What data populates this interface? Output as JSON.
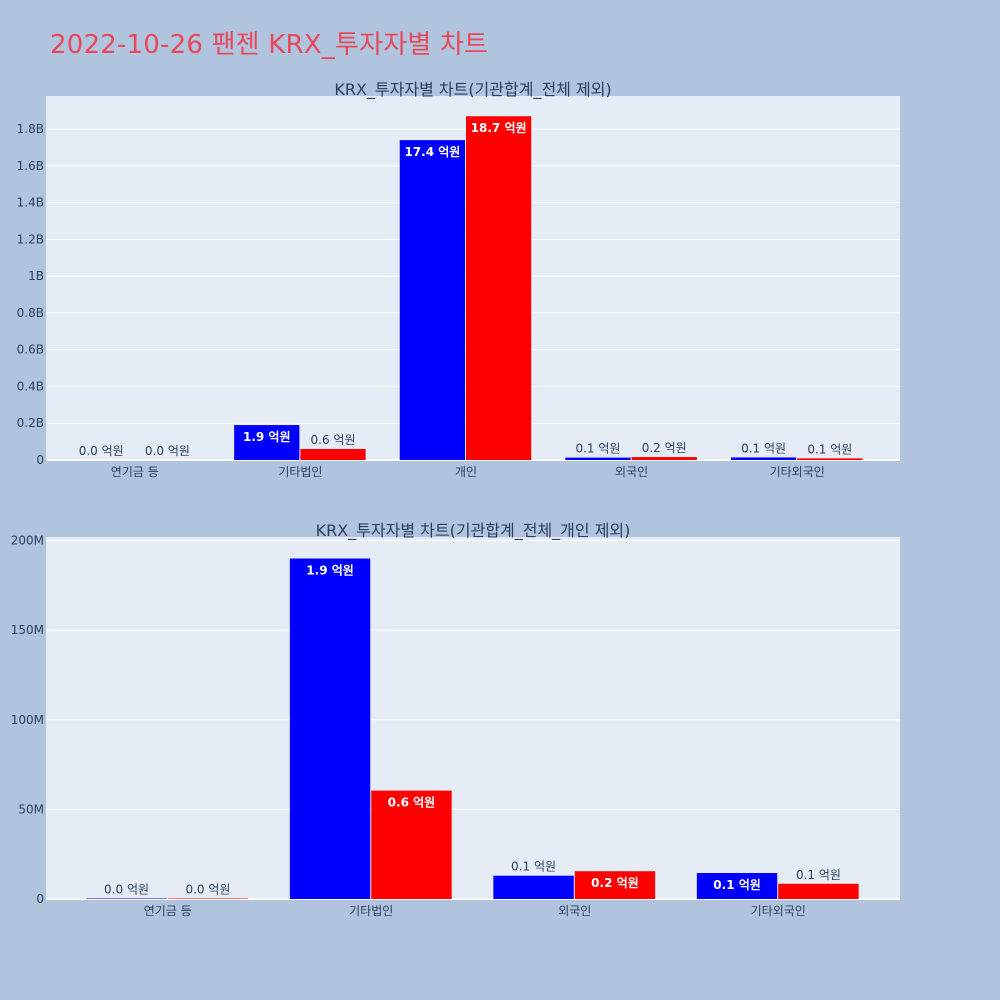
{
  "page": {
    "title": "2022-10-26 팬젠 KRX_투자자별 차트"
  },
  "colors": {
    "background": "#b0c4de",
    "plot_bg": "#e5ecf6",
    "grid": "#ffffff",
    "series_1": "#0000ff",
    "series_2": "#ff0000",
    "title": "#e8485a",
    "text": "#2a3f5f"
  },
  "chart_data": [
    {
      "type": "bar",
      "title": "KRX_투자자별 차트(기관합계_전체 제외)",
      "categories": [
        "연기금 등",
        "기타법인",
        "개인",
        "외국인",
        "기타외국인"
      ],
      "ylim": [
        0,
        1980000000
      ],
      "y_ticks": [
        {
          "value": 0,
          "label": "0"
        },
        {
          "value": 200000000,
          "label": "0.2B"
        },
        {
          "value": 400000000,
          "label": "0.4B"
        },
        {
          "value": 600000000,
          "label": "0.6B"
        },
        {
          "value": 800000000,
          "label": "0.8B"
        },
        {
          "value": 1000000000,
          "label": "1B"
        },
        {
          "value": 1200000000,
          "label": "1.2B"
        },
        {
          "value": 1400000000,
          "label": "1.4B"
        },
        {
          "value": 1600000000,
          "label": "1.6B"
        },
        {
          "value": 1800000000,
          "label": "1.8B"
        }
      ],
      "grid": true,
      "series": [
        {
          "values": [
            0,
            190000000,
            1740000000,
            13000000,
            14000000
          ],
          "labels": [
            "0.0 억원",
            "1.9 억원",
            "17.4 억원",
            "0.1 억원",
            "0.1 억원"
          ],
          "color": "#0000ff"
        },
        {
          "values": [
            0,
            60000000,
            1870000000,
            16000000,
            9000000
          ],
          "labels": [
            "0.0 억원",
            "0.6 억원",
            "18.7 억원",
            "0.2 억원",
            "0.1 억원"
          ],
          "color": "#ff0000"
        }
      ]
    },
    {
      "type": "bar",
      "title": "KRX_투자자별 차트(기관합계_전체_개인 제외)",
      "categories": [
        "연기금 등",
        "기타법인",
        "외국인",
        "기타외국인"
      ],
      "ylim": [
        0,
        202000000
      ],
      "y_ticks": [
        {
          "value": 0,
          "label": "0"
        },
        {
          "value": 50000000,
          "label": "50M"
        },
        {
          "value": 100000000,
          "label": "100M"
        },
        {
          "value": 150000000,
          "label": "150M"
        },
        {
          "value": 200000000,
          "label": "200M"
        }
      ],
      "grid": true,
      "series": [
        {
          "values": [
            300000,
            190000000,
            13000000,
            14500000
          ],
          "labels": [
            "0.0 억원",
            "1.9 억원",
            "0.1 억원",
            "0.1 억원"
          ],
          "color": "#0000ff"
        },
        {
          "values": [
            300000,
            60500000,
            15500000,
            8500000
          ],
          "labels": [
            "0.0 억원",
            "0.6 억원",
            "0.2 억원",
            "0.1 억원"
          ],
          "color": "#ff0000"
        }
      ]
    }
  ]
}
